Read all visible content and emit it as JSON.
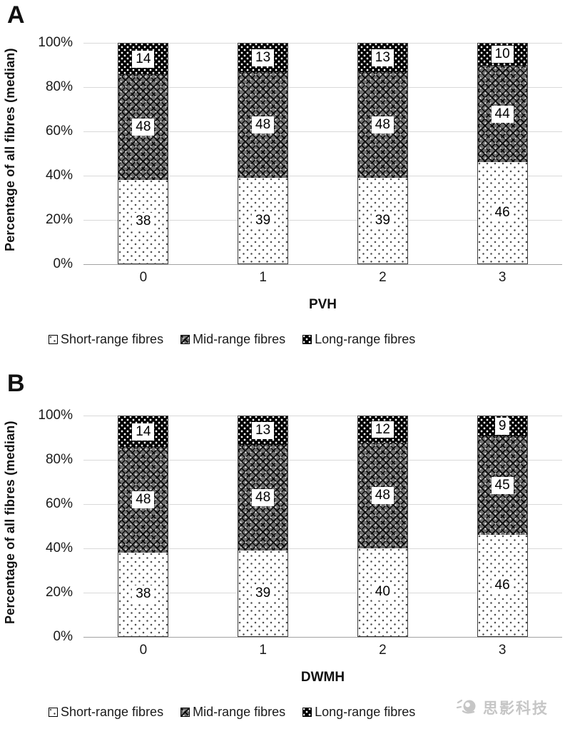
{
  "watermark": {
    "text": "思影科技",
    "color": "#c6c6c6",
    "logo": "camera-swirl-logo"
  },
  "chart_data": [
    {
      "type": "bar",
      "stacked": true,
      "panel_label": "A",
      "title": "",
      "xlabel": "PVH",
      "ylabel": "Percentage of all fibres (median)",
      "categories": [
        "0",
        "1",
        "2",
        "3"
      ],
      "y_ticks": [
        "100%",
        "80%",
        "60%",
        "40%",
        "20%",
        "0%"
      ],
      "ylim": [
        0,
        100
      ],
      "grid": true,
      "legend_position": "below",
      "bar_labels": true,
      "series": [
        {
          "name": "Short-range fibres",
          "pattern": "light-dots",
          "values": [
            38,
            39,
            39,
            46
          ]
        },
        {
          "name": "Mid-range fibres",
          "pattern": "dark-trellis",
          "values": [
            48,
            48,
            48,
            44
          ]
        },
        {
          "name": "Long-range fibres",
          "pattern": "black-white-dots",
          "values": [
            14,
            13,
            13,
            10
          ]
        }
      ]
    },
    {
      "type": "bar",
      "stacked": true,
      "panel_label": "B",
      "title": "",
      "xlabel": "DWMH",
      "ylabel": "Percentage of all fibres (median)",
      "categories": [
        "0",
        "1",
        "2",
        "3"
      ],
      "y_ticks": [
        "100%",
        "80%",
        "60%",
        "40%",
        "20%",
        "0%"
      ],
      "ylim": [
        0,
        100
      ],
      "grid": true,
      "legend_position": "below",
      "bar_labels": true,
      "series": [
        {
          "name": "Short-range fibres",
          "pattern": "light-dots",
          "values": [
            38,
            39,
            40,
            46
          ]
        },
        {
          "name": "Mid-range fibres",
          "pattern": "dark-trellis",
          "values": [
            48,
            48,
            48,
            45
          ]
        },
        {
          "name": "Long-range fibres",
          "pattern": "black-white-dots",
          "values": [
            14,
            13,
            12,
            9
          ]
        }
      ]
    }
  ]
}
